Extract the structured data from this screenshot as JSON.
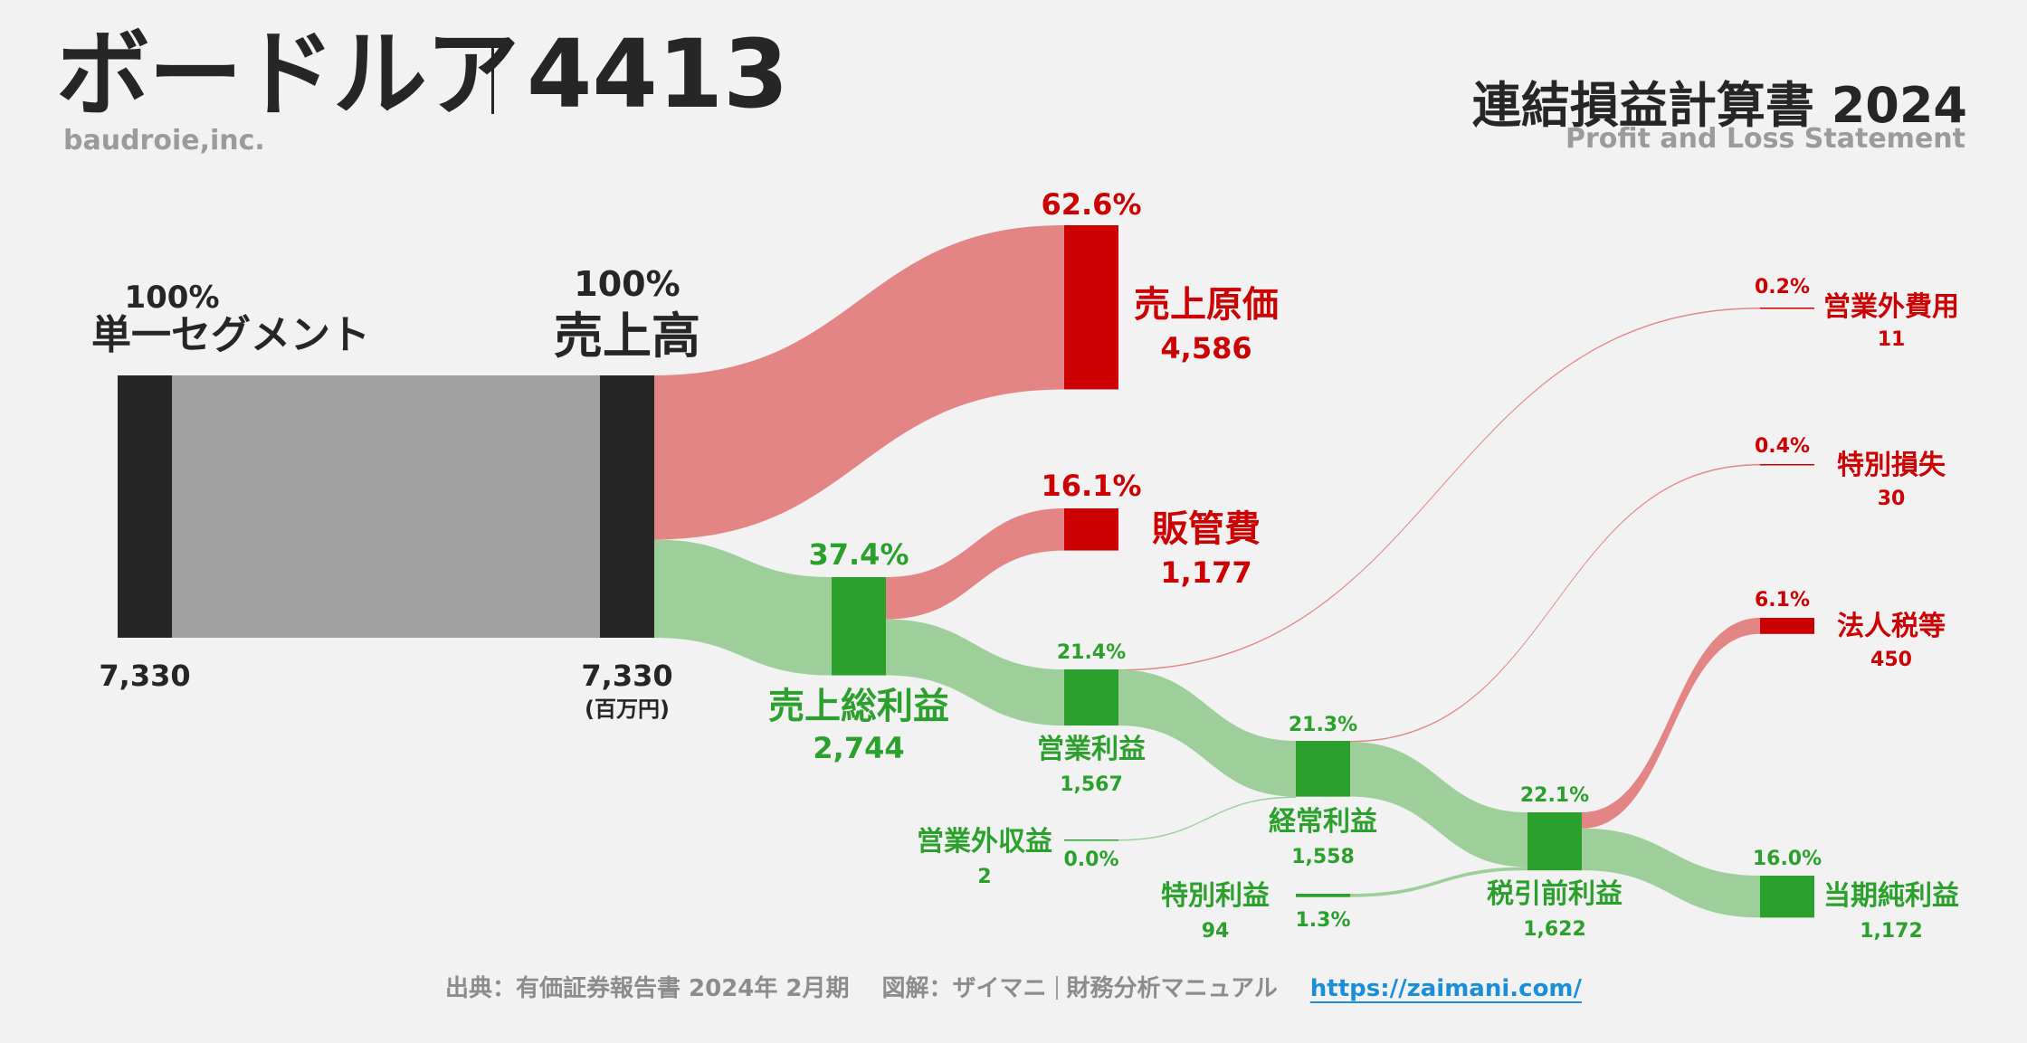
{
  "header": {
    "company_name": "ボードルア",
    "ticker": "4413",
    "company_en": "baudroie,inc.",
    "statement_title": "連結損益計算書 2024",
    "statement_subtitle": "Profit and Loss Statement"
  },
  "footer": {
    "source": "出典：有価証券報告書 2024年 2月期",
    "credit": "図解：ザイマニ",
    "brand": "財務分析マニュアル",
    "url": "https://zaimani.com/"
  },
  "colors": {
    "node_dark": "#262626",
    "node_gray": "#a0a0a0",
    "cost_red": "#cc0000",
    "cost_flow": "#e38585",
    "profit_green": "#2ca02c",
    "profit_flow": "#9ecf9a"
  },
  "chart_data": {
    "type": "sankey",
    "unit": "(百万円)",
    "nodes": [
      {
        "id": "segment",
        "name": "単一セグメント",
        "value": 7330,
        "value_label": "7,330",
        "pct": "100%",
        "kind": "source"
      },
      {
        "id": "revenue",
        "name": "売上高",
        "value": 7330,
        "value_label": "7,330",
        "pct": "100%",
        "kind": "source"
      },
      {
        "id": "cogs",
        "name": "売上原価",
        "value": 4586,
        "value_label": "4,586",
        "pct": "62.6%",
        "kind": "cost"
      },
      {
        "id": "gross",
        "name": "売上総利益",
        "value": 2744,
        "value_label": "2,744",
        "pct": "37.4%",
        "kind": "profit"
      },
      {
        "id": "sga",
        "name": "販管費",
        "value": 1177,
        "value_label": "1,177",
        "pct": "16.1%",
        "kind": "cost"
      },
      {
        "id": "operating",
        "name": "営業利益",
        "value": 1567,
        "value_label": "1,567",
        "pct": "21.4%",
        "kind": "profit"
      },
      {
        "id": "nonop_exp",
        "name": "営業外費用",
        "value": 11,
        "value_label": "11",
        "pct": "0.2%",
        "kind": "cost"
      },
      {
        "id": "nonop_inc",
        "name": "営業外収益",
        "value": 2,
        "value_label": "2",
        "pct": "0.0%",
        "kind": "profit"
      },
      {
        "id": "ordinary",
        "name": "経常利益",
        "value": 1558,
        "value_label": "1,558",
        "pct": "21.3%",
        "kind": "profit"
      },
      {
        "id": "special_loss",
        "name": "特別損失",
        "value": 30,
        "value_label": "30",
        "pct": "0.4%",
        "kind": "cost"
      },
      {
        "id": "special_gain",
        "name": "特別利益",
        "value": 94,
        "value_label": "94",
        "pct": "1.3%",
        "kind": "profit"
      },
      {
        "id": "pretax",
        "name": "税引前利益",
        "value": 1622,
        "value_label": "1,622",
        "pct": "22.1%",
        "kind": "profit"
      },
      {
        "id": "tax",
        "name": "法人税等",
        "value": 450,
        "value_label": "450",
        "pct": "6.1%",
        "kind": "cost"
      },
      {
        "id": "net",
        "name": "当期純利益",
        "value": 1172,
        "value_label": "1,172",
        "pct": "16.0%",
        "kind": "profit"
      }
    ],
    "links": [
      {
        "source": "segment",
        "target": "revenue",
        "value": 7330
      },
      {
        "source": "revenue",
        "target": "cogs",
        "value": 4586
      },
      {
        "source": "revenue",
        "target": "gross",
        "value": 2744
      },
      {
        "source": "gross",
        "target": "sga",
        "value": 1177
      },
      {
        "source": "gross",
        "target": "operating",
        "value": 1567
      },
      {
        "source": "operating",
        "target": "nonop_exp",
        "value": 11
      },
      {
        "source": "operating",
        "target": "ordinary",
        "value": 1556
      },
      {
        "source": "nonop_inc",
        "target": "ordinary",
        "value": 2
      },
      {
        "source": "ordinary",
        "target": "special_loss",
        "value": 30
      },
      {
        "source": "ordinary",
        "target": "pretax",
        "value": 1528
      },
      {
        "source": "special_gain",
        "target": "pretax",
        "value": 94
      },
      {
        "source": "pretax",
        "target": "tax",
        "value": 450
      },
      {
        "source": "pretax",
        "target": "net",
        "value": 1172
      }
    ]
  }
}
